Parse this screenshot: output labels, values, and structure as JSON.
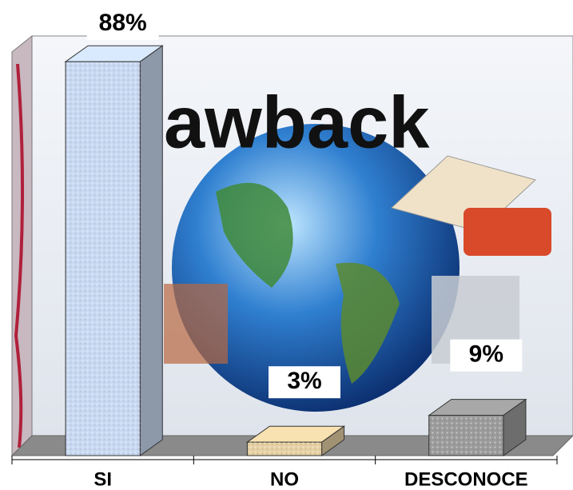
{
  "chart_data": {
    "type": "bar",
    "background_text": "awback",
    "categories": [
      "SI",
      "NO",
      "DESCONOCE"
    ],
    "values": [
      88,
      3,
      9
    ],
    "value_labels": [
      "88%",
      "3%",
      "9%"
    ],
    "colors": [
      "#c9d9f2",
      "#e6d1a4",
      "#9c9c9c"
    ]
  }
}
